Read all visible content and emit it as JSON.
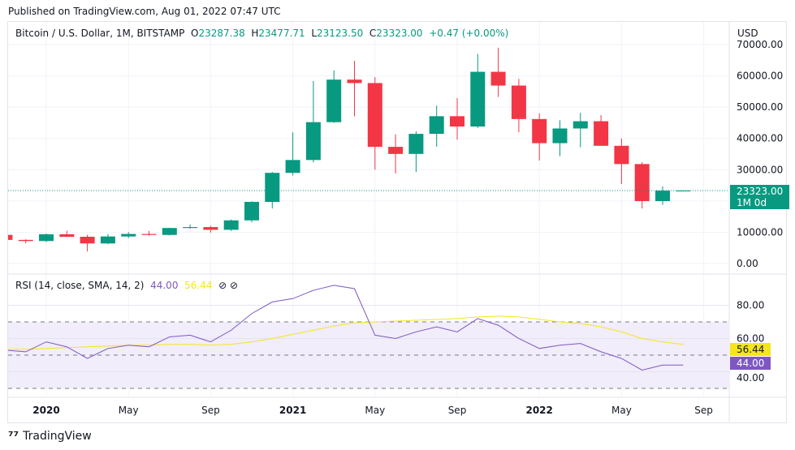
{
  "published": "Published on TradingView.com, Aug 01, 2022 07:47 UTC",
  "legend": {
    "symbol": "Bitcoin / U.S. Dollar, 1M, BITSTAMP",
    "o_label": "O",
    "o": "23287.38",
    "h_label": "H",
    "h": "23477.71",
    "l_label": "L",
    "l": "23123.50",
    "c_label": "C",
    "c": "23323.00",
    "change": "+0.47 (+0.00%)"
  },
  "currency": "USD",
  "price_ticks": [
    "70000.00",
    "60000.00",
    "50000.00",
    "40000.00",
    "30000.00",
    "10000.00",
    "0.00"
  ],
  "last_price": {
    "value": "23323.00",
    "countdown": "1M 0d"
  },
  "rsi": {
    "label": "RSI (14, close, SMA, 14, 2)",
    "value": "44.00",
    "sma": "56.44",
    "ticks": [
      "80.00",
      "60.00",
      "40.00"
    ],
    "icons": [
      "eye-off-icon",
      "eye-off-icon"
    ]
  },
  "time_axis": [
    {
      "label": "2020",
      "bold": true,
      "i": 2
    },
    {
      "label": "May",
      "i": 6
    },
    {
      "label": "Sep",
      "i": 10
    },
    {
      "label": "2021",
      "bold": true,
      "i": 14
    },
    {
      "label": "May",
      "i": 18
    },
    {
      "label": "Sep",
      "i": 22
    },
    {
      "label": "2022",
      "bold": true,
      "i": 26
    },
    {
      "label": "May",
      "i": 30
    },
    {
      "label": "Sep",
      "i": 34
    }
  ],
  "brand": "TradingView",
  "colors": {
    "up": "#089981",
    "down": "#f23645",
    "rsi": "#7e57c2",
    "sma": "#f5e61a",
    "band": "#f1edfa"
  },
  "chart_data": {
    "type": "candlestick",
    "ylim": [
      0,
      70000
    ],
    "months": [
      "Nov 2019",
      "Dec 2019",
      "Jan 2020",
      "Feb 2020",
      "Mar 2020",
      "Apr 2020",
      "May 2020",
      "Jun 2020",
      "Jul 2020",
      "Aug 2020",
      "Sep 2020",
      "Oct 2020",
      "Nov 2020",
      "Dec 2020",
      "Jan 2021",
      "Feb 2021",
      "Mar 2021",
      "Apr 2021",
      "May 2021",
      "Jun 2021",
      "Jul 2021",
      "Aug 2021",
      "Sep 2021",
      "Oct 2021",
      "Nov 2021",
      "Dec 2021",
      "Jan 2022",
      "Feb 2022",
      "Mar 2022",
      "Apr 2022",
      "May 2022",
      "Jun 2022",
      "Jul 2022",
      "Aug 2022"
    ],
    "ohlc": [
      [
        9150,
        9500,
        6500,
        7550
      ],
      [
        7550,
        7750,
        6430,
        7190
      ],
      [
        7190,
        9600,
        6850,
        9350
      ],
      [
        9350,
        10500,
        8450,
        8550
      ],
      [
        8550,
        9190,
        3850,
        6420
      ],
      [
        6420,
        9450,
        6150,
        8650
      ],
      [
        8650,
        10080,
        8130,
        9450
      ],
      [
        9450,
        10400,
        8900,
        9140
      ],
      [
        9140,
        11450,
        8970,
        11350
      ],
      [
        11350,
        12470,
        11100,
        11650
      ],
      [
        11650,
        12080,
        9850,
        10780
      ],
      [
        10780,
        14100,
        10400,
        13800
      ],
      [
        13800,
        19900,
        13200,
        19700
      ],
      [
        19700,
        29300,
        17600,
        28990
      ],
      [
        28990,
        41950,
        28130,
        33100
      ],
      [
        33100,
        58350,
        32300,
        45200
      ],
      [
        45200,
        61780,
        44950,
        58800
      ],
      [
        58800,
        64850,
        47050,
        57700
      ],
      [
        57700,
        59580,
        30000,
        37300
      ],
      [
        37300,
        41330,
        28800,
        35040
      ],
      [
        35040,
        42300,
        29300,
        41460
      ],
      [
        41460,
        50500,
        37330,
        47100
      ],
      [
        47100,
        52900,
        39600,
        43800
      ],
      [
        43800,
        67000,
        43300,
        61300
      ],
      [
        61300,
        69000,
        53250,
        56900
      ],
      [
        56900,
        59050,
        42000,
        46200
      ],
      [
        46200,
        47990,
        32950,
        38480
      ],
      [
        38480,
        45800,
        34320,
        43180
      ],
      [
        43180,
        48190,
        37170,
        45500
      ],
      [
        45500,
        47440,
        37700,
        37640
      ],
      [
        37640,
        40000,
        25400,
        31800
      ],
      [
        31800,
        32400,
        17600,
        19950
      ],
      [
        19950,
        24660,
        18780,
        23300
      ],
      [
        23287.38,
        23477.71,
        23123.5,
        23323
      ]
    ],
    "rsi": {
      "ylim": [
        20,
        100
      ],
      "bands": [
        30,
        50,
        70
      ],
      "values": [
        53,
        52,
        58,
        55,
        48,
        54,
        56,
        55,
        61,
        62,
        58,
        65,
        75,
        82,
        84,
        89,
        92,
        90,
        62,
        60,
        64,
        67,
        64,
        72,
        68,
        60,
        54,
        56,
        57,
        52,
        48,
        41,
        44,
        44
      ],
      "sma": [
        53.5,
        53.5,
        54,
        54.5,
        55,
        55.5,
        56,
        56,
        56.5,
        56.5,
        56,
        56.5,
        58,
        60,
        62.5,
        65,
        67.5,
        69.5,
        70,
        70.5,
        71,
        71.5,
        72,
        73,
        73.5,
        73,
        71.5,
        70,
        69,
        67,
        64,
        60,
        58,
        56.44
      ]
    }
  }
}
